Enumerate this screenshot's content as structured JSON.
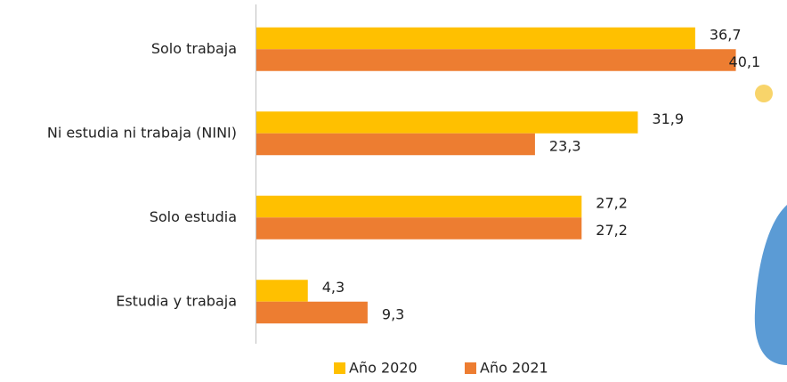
{
  "chart_data": {
    "type": "hbar",
    "categories": [
      "Solo trabaja",
      "Ni estudia ni trabaja (NINI)",
      "Solo estudia",
      "Estudia y trabaja"
    ],
    "series": [
      {
        "name": "Año 2020",
        "color": "#FFC000",
        "values": [
          36.7,
          31.9,
          27.2,
          4.3
        ],
        "value_labels": [
          "36,7",
          "31,9",
          "27,2",
          "4,3"
        ]
      },
      {
        "name": "Año 2021",
        "color": "#ED7D31",
        "values": [
          40.1,
          23.3,
          27.2,
          9.3
        ],
        "value_labels": [
          "40,1",
          "23,3",
          "27,2",
          "9,3"
        ]
      }
    ]
  }
}
